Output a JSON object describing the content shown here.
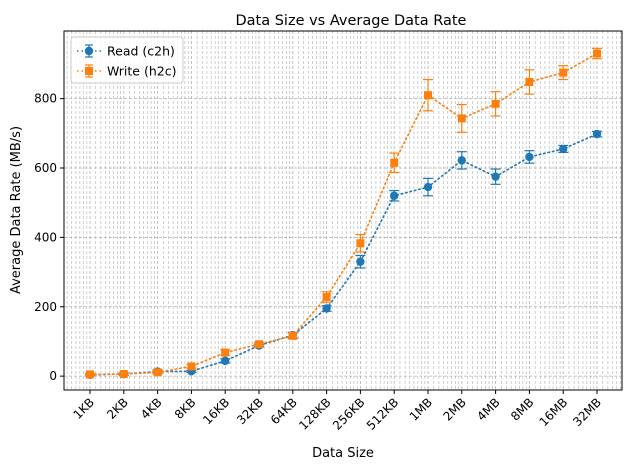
{
  "chart_data": {
    "type": "line",
    "title": "Data Size vs Average Data Rate",
    "xlabel": "Data Size",
    "ylabel": "Average Data Rate (MB/s)",
    "x_scale": "log2",
    "grid": true,
    "legend_position": "top-left",
    "categories": [
      "1KB",
      "2KB",
      "4KB",
      "8KB",
      "16KB",
      "32KB",
      "64KB",
      "128KB",
      "256KB",
      "512KB",
      "1MB",
      "2MB",
      "4MB",
      "8MB",
      "16MB",
      "32MB"
    ],
    "yticks": [
      0,
      200,
      400,
      600,
      800
    ],
    "ylim": [
      -40,
      995
    ],
    "series": [
      {
        "name": "Read (c2h)",
        "color": "#1f77b4",
        "marker": "circle",
        "values": [
          4,
          6,
          13,
          14,
          44,
          88,
          118,
          195,
          330,
          520,
          545,
          622,
          575,
          632,
          655,
          698
        ],
        "errors": [
          3,
          4,
          5,
          3,
          6,
          4,
          8,
          8,
          18,
          15,
          25,
          25,
          22,
          18,
          10,
          8
        ]
      },
      {
        "name": "Write (h2c)",
        "color": "#ff7f0e",
        "marker": "square",
        "values": [
          5,
          6,
          11,
          28,
          68,
          92,
          116,
          228,
          383,
          615,
          810,
          743,
          785,
          848,
          875,
          930
        ],
        "errors": [
          3,
          3,
          5,
          5,
          8,
          5,
          8,
          15,
          25,
          28,
          45,
          40,
          35,
          35,
          20,
          15
        ]
      }
    ]
  }
}
